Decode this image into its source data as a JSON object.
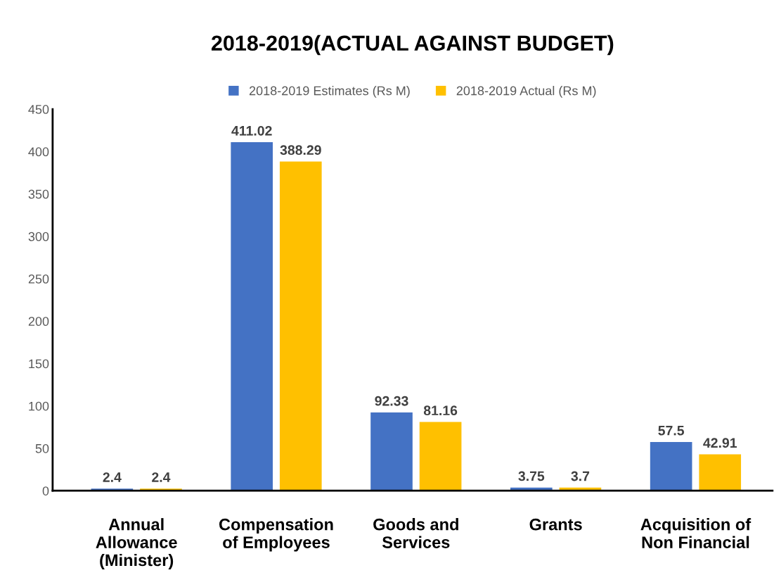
{
  "chart_data": {
    "type": "bar",
    "title": "2018-2019(ACTUAL AGAINST BUDGET)",
    "categories": [
      "Annual\nAllowance\n(Minister)",
      "Compensation\nof Employees",
      "Goods and\nServices",
      "Grants",
      "Acquisition of\nNon Financial"
    ],
    "series": [
      {
        "name": "2018-2019 Estimates (Rs M)",
        "color": "#4472c4",
        "values": [
          2.4,
          411.02,
          92.33,
          3.75,
          57.5
        ]
      },
      {
        "name": "2018-2019 Actual (Rs M)",
        "color": "#ffc000",
        "values": [
          2.4,
          388.29,
          81.16,
          3.7,
          42.91
        ]
      }
    ],
    "ylim": [
      0,
      450
    ],
    "yticks": [
      0,
      50,
      100,
      150,
      200,
      250,
      300,
      350,
      400,
      450
    ],
    "data_labels": true,
    "legend": "top",
    "grid": false
  }
}
